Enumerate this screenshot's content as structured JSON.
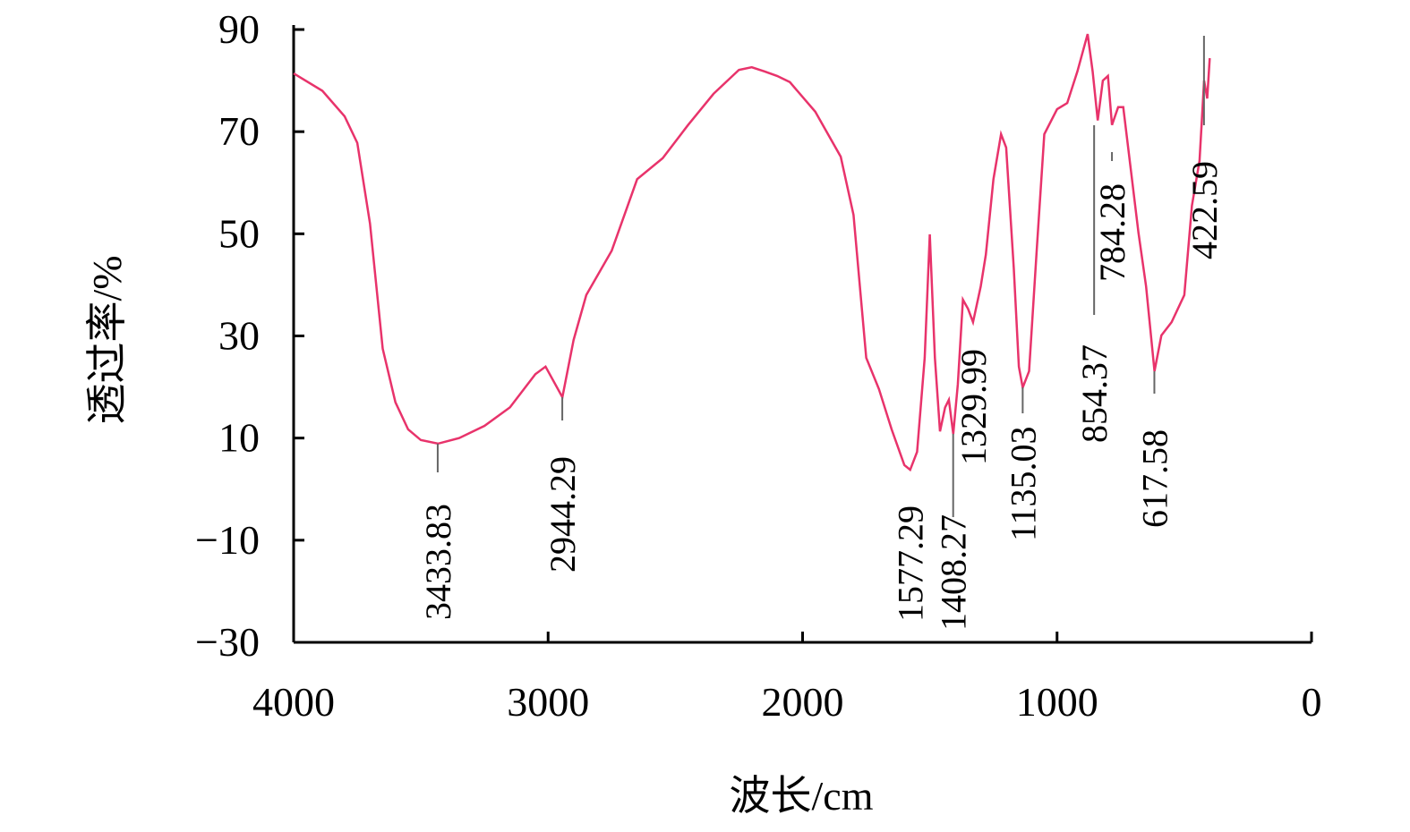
{
  "chart_data": {
    "type": "line",
    "x_label": "波长/cm",
    "y_label": "透过率/%",
    "xlim": [
      4000,
      0
    ],
    "xticks": [
      4000,
      3000,
      2000,
      1000,
      0
    ],
    "ylim": [
      -30,
      90
    ],
    "yticks": [
      {
        "value": -30,
        "label": "−30"
      },
      {
        "value": -10,
        "label": "−10"
      },
      10,
      30,
      50,
      70,
      90
    ],
    "color": "#e8336b",
    "x": [
      4000,
      3887,
      3800,
      3750,
      3700,
      3650,
      3600,
      3550,
      3500,
      3433,
      3350,
      3250,
      3150,
      3050,
      3010,
      2944,
      2900,
      2850,
      2750,
      2650,
      2550,
      2450,
      2350,
      2250,
      2200,
      2150,
      2100,
      2050,
      1950,
      1850,
      1800,
      1750,
      1700,
      1650,
      1600,
      1577,
      1550,
      1520,
      1500,
      1480,
      1460,
      1440,
      1425,
      1408,
      1390,
      1370,
      1350,
      1330,
      1300,
      1280,
      1250,
      1220,
      1200,
      1170,
      1150,
      1135,
      1110,
      1080,
      1050,
      1000,
      960,
      920,
      880,
      860,
      840,
      820,
      800,
      784,
      760,
      740,
      710,
      680,
      650,
      617,
      590,
      550,
      500,
      470,
      440,
      422,
      410,
      400
    ],
    "values": [
      81.4,
      78,
      73,
      67.8,
      52,
      27.5,
      17,
      11.7,
      9.6,
      8.9,
      10,
      12.4,
      16,
      22.5,
      24,
      18,
      29.2,
      38,
      46.7,
      60.7,
      64.8,
      71.3,
      77.4,
      82.1,
      82.6,
      81.8,
      80.9,
      79.7,
      73.9,
      65.1,
      53.7,
      25.7,
      19.6,
      11.7,
      4.7,
      3.8,
      7.3,
      25.7,
      49.9,
      25.7,
      11.3,
      16,
      17.5,
      10.8,
      20.5,
      37.1,
      35.3,
      32.7,
      39.7,
      45.9,
      60.7,
      69.5,
      66.9,
      43.3,
      24,
      19.9,
      23.1,
      46.7,
      69.5,
      74.4,
      75.6,
      81.8,
      89.1,
      81.8,
      72.2,
      80,
      80.9,
      71.3,
      74.8,
      74.8,
      62.5,
      50.2,
      39.7,
      23.1,
      30.1,
      32.7,
      38,
      55.5,
      64.3,
      80,
      76.5,
      84.4
    ],
    "peaks": [
      3433.83,
      2944.29,
      1577.29,
      1408.27,
      1329.99,
      1135.03,
      854.37,
      784.28,
      617.58,
      422.59
    ]
  }
}
